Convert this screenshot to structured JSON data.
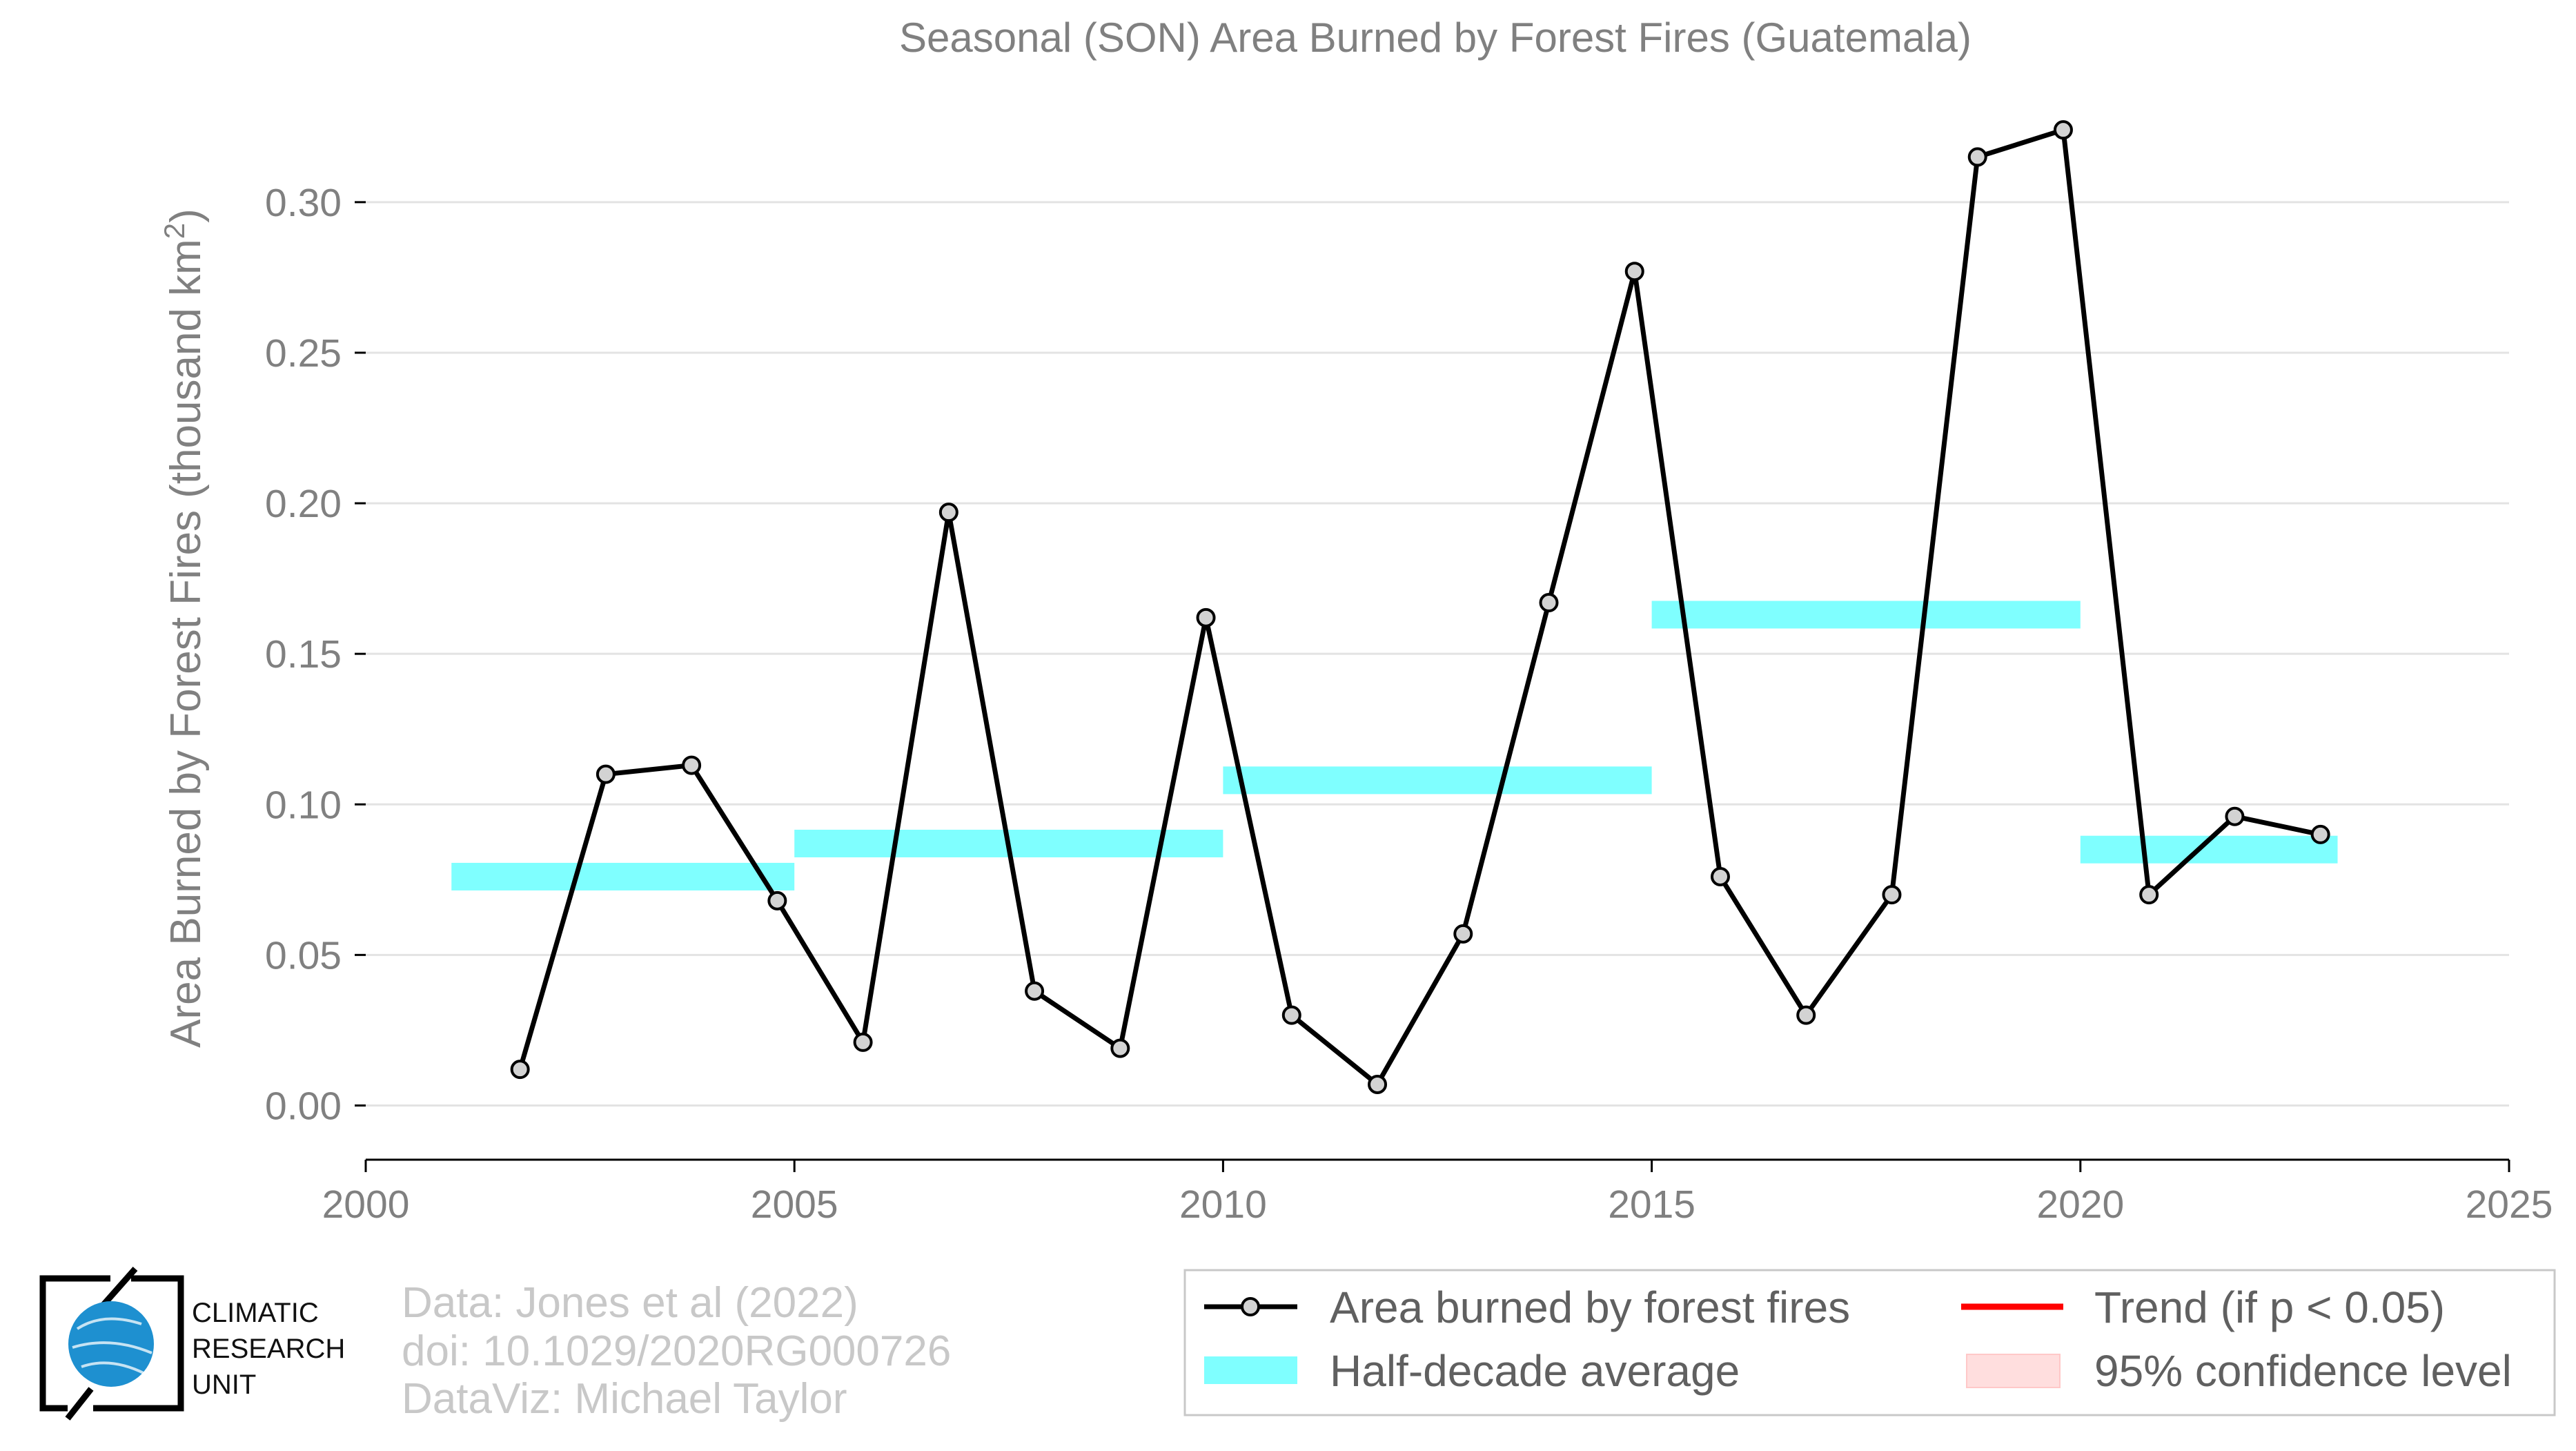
{
  "chart_data": {
    "type": "line",
    "title": "Seasonal (SON) Area Burned by Forest Fires (Guatemala)",
    "ylabel": "Area Burned by Forest Fires (thousand km",
    "ylabel_sup": "2",
    "ylabel_close": ")",
    "xlabel": "",
    "xlim": [
      2000,
      2025
    ],
    "ylim": [
      -0.018,
      0.33
    ],
    "x_ticks": [
      2000,
      2005,
      2010,
      2015,
      2020,
      2025
    ],
    "x_tick_labels": [
      "2000",
      "2005",
      "2010",
      "2015",
      "2020",
      "2025"
    ],
    "y_ticks": [
      0,
      0.05,
      0.1,
      0.15,
      0.2,
      0.25,
      0.3
    ],
    "y_tick_labels": [
      "0.00",
      "0.05",
      "0.10",
      "0.15",
      "0.20",
      "0.25",
      "0.30"
    ],
    "grid": "horizontal",
    "series": [
      {
        "name": "Area burned by forest fires",
        "color": "#000000",
        "marker_fill": "#d3d3d3",
        "x": [
          2001.8,
          2002.8,
          2003.8,
          2004.8,
          2005.8,
          2006.8,
          2007.8,
          2008.8,
          2009.8,
          2010.8,
          2011.8,
          2012.8,
          2013.8,
          2014.8,
          2015.8,
          2016.8,
          2017.8,
          2018.8,
          2019.8,
          2020.8,
          2021.8,
          2022.8
        ],
        "values": [
          0.012,
          0.11,
          0.113,
          0.068,
          0.021,
          0.197,
          0.038,
          0.019,
          0.162,
          0.03,
          0.007,
          0.057,
          0.167,
          0.277,
          0.076,
          0.03,
          0.07,
          0.315,
          0.324,
          0.07,
          0.096,
          0.09
        ]
      }
    ],
    "half_decade_averages": {
      "name": "Half-decade average",
      "color": "#7fffff",
      "segments": [
        {
          "x0": 2001,
          "x1": 2005,
          "value": 0.076
        },
        {
          "x0": 2005,
          "x1": 2010,
          "value": 0.087
        },
        {
          "x0": 2010,
          "x1": 2015,
          "value": 0.108
        },
        {
          "x0": 2015,
          "x1": 2020,
          "value": 0.163
        },
        {
          "x0": 2020,
          "x1": 2023,
          "value": 0.085
        }
      ]
    },
    "legend": {
      "placement": "bottom-right",
      "entries": [
        {
          "label": "Area burned by forest fires",
          "kind": "line-marker",
          "color": "#000000"
        },
        {
          "label": "Trend (if p < 0.05)",
          "kind": "line",
          "color": "#ff0000"
        },
        {
          "label": "Half-decade average",
          "kind": "band",
          "color": "#7fffff"
        },
        {
          "label": "95% confidence level",
          "kind": "band",
          "color": "#ffdede"
        }
      ]
    }
  },
  "credits": {
    "line1": "Data: Jones et al (2022)",
    "line2": "doi: 10.1029/2020RG000726",
    "line3": "DataViz: Michael Taylor"
  },
  "logo": {
    "line1": "CLIMATIC",
    "line2": "RESEARCH",
    "line3": "UNIT",
    "globe_color": "#1e90d0"
  }
}
